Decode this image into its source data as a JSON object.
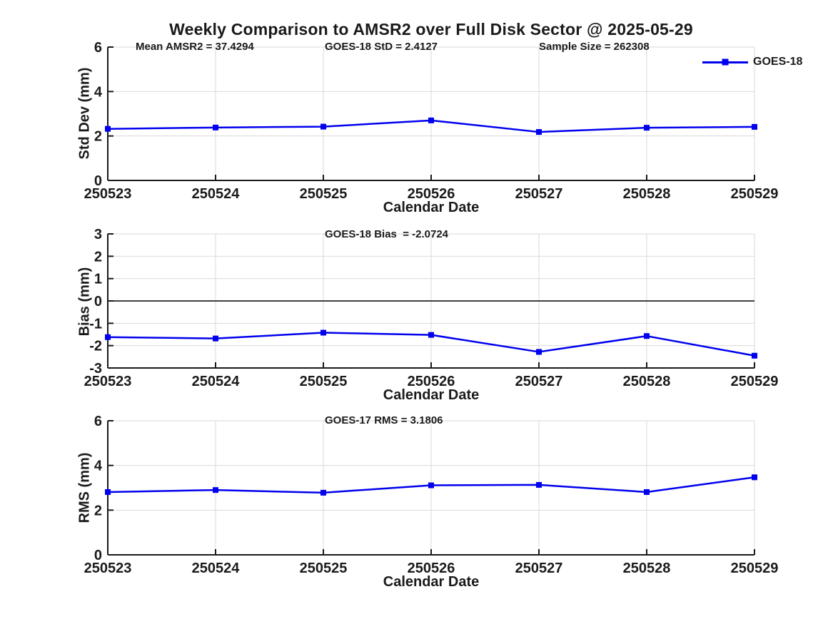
{
  "figure": {
    "title": "Weekly Comparison to AMSR2 over Full Disk Sector @ 2025-05-29"
  },
  "legend": {
    "label": "GOES-18",
    "position": "top-right",
    "border": false
  },
  "colors": {
    "line": "#0000EE",
    "grid": "#D9D9D9",
    "axis": "#1a1a1a",
    "zero_line": "#3F3F3F",
    "background": "#ffffff"
  },
  "chart_data": [
    {
      "type": "line",
      "ylabel": "Std Dev (mm)",
      "xlabel": "Calendar Date",
      "ylim": [
        0,
        6
      ],
      "yticks": [
        0,
        2,
        4,
        6
      ],
      "grid": true,
      "marker": "square",
      "annotations": [
        "Mean AMSR2 = 37.4294",
        "GOES-18 StD = 2.4127",
        "Sample Size = 262308"
      ],
      "categories": [
        "250523",
        "250524",
        "250525",
        "250526",
        "250527",
        "250528",
        "250529"
      ],
      "series": [
        {
          "name": "GOES-18",
          "values": [
            2.32,
            2.38,
            2.42,
            2.7,
            2.18,
            2.37,
            2.41
          ]
        }
      ]
    },
    {
      "type": "line",
      "ylabel": "Bias (mm)",
      "xlabel": "Calendar Date",
      "ylim": [
        -3,
        3
      ],
      "yticks": [
        -3,
        -2,
        -1,
        0,
        1,
        2,
        3
      ],
      "grid": true,
      "zero_line": true,
      "marker": "square",
      "annotations": [
        "GOES-18 Bias  = -2.0724"
      ],
      "categories": [
        "250523",
        "250524",
        "250525",
        "250526",
        "250527",
        "250528",
        "250529"
      ],
      "series": [
        {
          "name": "GOES-18",
          "values": [
            -1.62,
            -1.68,
            -1.42,
            -1.52,
            -2.28,
            -1.57,
            -2.45
          ]
        }
      ]
    },
    {
      "type": "line",
      "ylabel": "RMS (mm)",
      "xlabel": "Calendar Date",
      "ylim": [
        0,
        6
      ],
      "yticks": [
        0,
        2,
        4,
        6
      ],
      "grid": true,
      "marker": "square",
      "annotations": [
        "GOES-17 RMS = 3.1806"
      ],
      "categories": [
        "250523",
        "250524",
        "250525",
        "250526",
        "250527",
        "250528",
        "250529"
      ],
      "series": [
        {
          "name": "GOES-18",
          "values": [
            2.81,
            2.9,
            2.78,
            3.11,
            3.13,
            2.81,
            3.47
          ]
        }
      ]
    }
  ]
}
